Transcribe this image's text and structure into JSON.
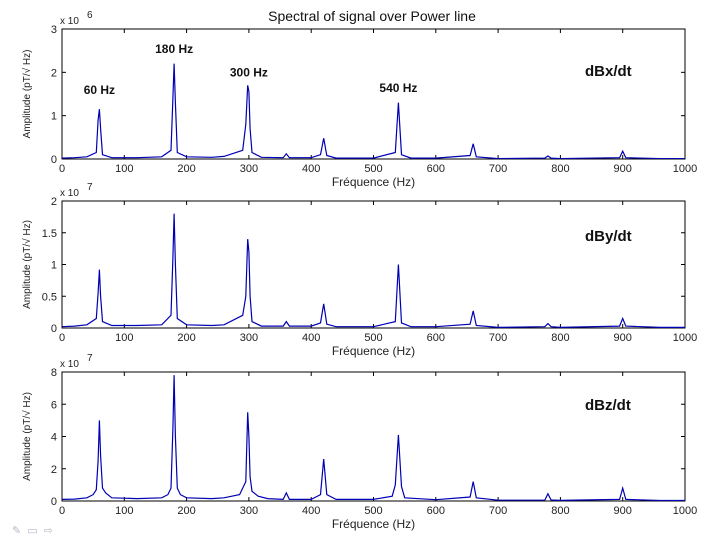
{
  "figure": {
    "title": "Spectral of signal over Power line",
    "colors": {
      "line": "#0000b4",
      "axes": "#000000",
      "background": "#ffffff"
    }
  },
  "toolbar": {
    "icons": [
      "pen-icon",
      "screen-icon",
      "arrow-right-icon"
    ],
    "pen_glyph": "✎",
    "screen_glyph": "▭",
    "arrow_glyph": "⇨"
  },
  "chart_data": [
    {
      "type": "line",
      "title": "Spectral of signal over Power line",
      "xlabel": "Fréquence (Hz)",
      "ylabel": "Amplitude (pT/√ Hz)",
      "xlim": [
        0,
        1000
      ],
      "ylim": [
        0,
        3
      ],
      "xticks": [
        "0",
        "100",
        "200",
        "300",
        "400",
        "500",
        "600",
        "700",
        "800",
        "900",
        "1000"
      ],
      "yticks": [
        "0",
        "1",
        "2",
        "3"
      ],
      "y_exponent": "x 10",
      "y_exponent_power": "6",
      "panel_label": "dBx/dt",
      "grid": false,
      "series": [
        {
          "x": [
            0,
            20,
            40,
            55,
            58,
            60,
            62,
            65,
            80,
            120,
            160,
            175,
            178,
            180,
            182,
            185,
            200,
            240,
            260,
            290,
            295,
            298,
            300,
            302,
            305,
            320,
            355,
            360,
            365,
            400,
            415,
            420,
            425,
            440,
            500,
            535,
            540,
            545,
            560,
            600,
            655,
            660,
            665,
            700,
            775,
            780,
            785,
            800,
            895,
            900,
            905,
            960,
            1000
          ],
          "y": [
            0.02,
            0.03,
            0.05,
            0.15,
            0.9,
            1.15,
            0.7,
            0.1,
            0.03,
            0.03,
            0.05,
            0.2,
            1.4,
            2.2,
            1.3,
            0.15,
            0.05,
            0.04,
            0.06,
            0.2,
            0.8,
            1.7,
            1.55,
            0.7,
            0.15,
            0.04,
            0.03,
            0.12,
            0.03,
            0.03,
            0.1,
            0.48,
            0.08,
            0.02,
            0.02,
            0.15,
            1.3,
            0.1,
            0.02,
            0.02,
            0.08,
            0.35,
            0.05,
            0.01,
            0.02,
            0.07,
            0.02,
            0.01,
            0.03,
            0.18,
            0.03,
            0.01,
            0.01
          ]
        }
      ],
      "annotations": [
        {
          "text": "60 Hz",
          "x": 60,
          "y": 1.5
        },
        {
          "text": "180 Hz",
          "x": 180,
          "y": 2.45
        },
        {
          "text": "300 Hz",
          "x": 300,
          "y": 1.9
        },
        {
          "text": "540 Hz",
          "x": 540,
          "y": 1.55
        }
      ]
    },
    {
      "type": "line",
      "xlabel": "Fréquence (Hz)",
      "ylabel": "Amplitude (pT/√ Hz)",
      "xlim": [
        0,
        1000
      ],
      "ylim": [
        0,
        2
      ],
      "xticks": [
        "0",
        "100",
        "200",
        "300",
        "400",
        "500",
        "600",
        "700",
        "800",
        "900",
        "1000"
      ],
      "yticks": [
        "0",
        "0.5",
        "1",
        "1.5",
        "2"
      ],
      "y_exponent": "x 10",
      "y_exponent_power": "7",
      "panel_label": "dBy/dt",
      "grid": false,
      "series": [
        {
          "x": [
            0,
            20,
            40,
            55,
            58,
            60,
            62,
            65,
            80,
            120,
            160,
            175,
            178,
            180,
            182,
            185,
            200,
            240,
            260,
            290,
            295,
            298,
            300,
            302,
            305,
            320,
            355,
            360,
            365,
            400,
            415,
            420,
            425,
            440,
            500,
            535,
            540,
            545,
            560,
            600,
            655,
            660,
            665,
            700,
            775,
            780,
            785,
            800,
            895,
            900,
            905,
            960,
            1000
          ],
          "y": [
            0.02,
            0.03,
            0.05,
            0.15,
            0.55,
            0.92,
            0.5,
            0.1,
            0.04,
            0.04,
            0.05,
            0.2,
            1.1,
            1.8,
            1.0,
            0.15,
            0.05,
            0.04,
            0.05,
            0.2,
            0.5,
            1.4,
            1.2,
            0.5,
            0.1,
            0.03,
            0.03,
            0.1,
            0.03,
            0.03,
            0.08,
            0.38,
            0.06,
            0.02,
            0.02,
            0.1,
            1.0,
            0.08,
            0.02,
            0.02,
            0.06,
            0.27,
            0.04,
            0.01,
            0.02,
            0.07,
            0.02,
            0.01,
            0.03,
            0.15,
            0.03,
            0.01,
            0.01
          ]
        }
      ]
    },
    {
      "type": "line",
      "xlabel": "Fréquence (Hz)",
      "ylabel": "Amplitude (pT/√ Hz)",
      "xlim": [
        0,
        1000
      ],
      "ylim": [
        0,
        8
      ],
      "xticks": [
        "0",
        "100",
        "200",
        "300",
        "400",
        "500",
        "600",
        "700",
        "800",
        "900",
        "1000"
      ],
      "yticks": [
        "0",
        "2",
        "4",
        "6",
        "8"
      ],
      "y_exponent": "x 10",
      "y_exponent_power": "7",
      "panel_label": "dBz/dt",
      "grid": false,
      "series": [
        {
          "x": [
            0,
            20,
            40,
            50,
            55,
            58,
            60,
            62,
            65,
            70,
            80,
            120,
            160,
            170,
            175,
            178,
            180,
            182,
            185,
            190,
            200,
            240,
            260,
            285,
            295,
            298,
            300,
            302,
            305,
            315,
            330,
            355,
            360,
            365,
            400,
            415,
            420,
            425,
            440,
            500,
            530,
            535,
            540,
            545,
            550,
            600,
            655,
            660,
            665,
            700,
            775,
            780,
            785,
            800,
            895,
            900,
            905,
            960,
            1000
          ],
          "y": [
            0.1,
            0.12,
            0.2,
            0.4,
            0.7,
            2.5,
            5.0,
            2.8,
            0.8,
            0.5,
            0.2,
            0.15,
            0.2,
            0.4,
            0.8,
            4.5,
            7.8,
            4.0,
            0.8,
            0.4,
            0.2,
            0.15,
            0.2,
            0.4,
            1.2,
            5.5,
            4.0,
            1.5,
            0.6,
            0.3,
            0.15,
            0.1,
            0.5,
            0.1,
            0.1,
            0.4,
            2.6,
            0.4,
            0.1,
            0.1,
            0.3,
            1.0,
            4.1,
            0.9,
            0.2,
            0.08,
            0.25,
            1.2,
            0.2,
            0.05,
            0.05,
            0.45,
            0.06,
            0.04,
            0.1,
            0.8,
            0.1,
            0.03,
            0.03
          ]
        }
      ]
    }
  ]
}
